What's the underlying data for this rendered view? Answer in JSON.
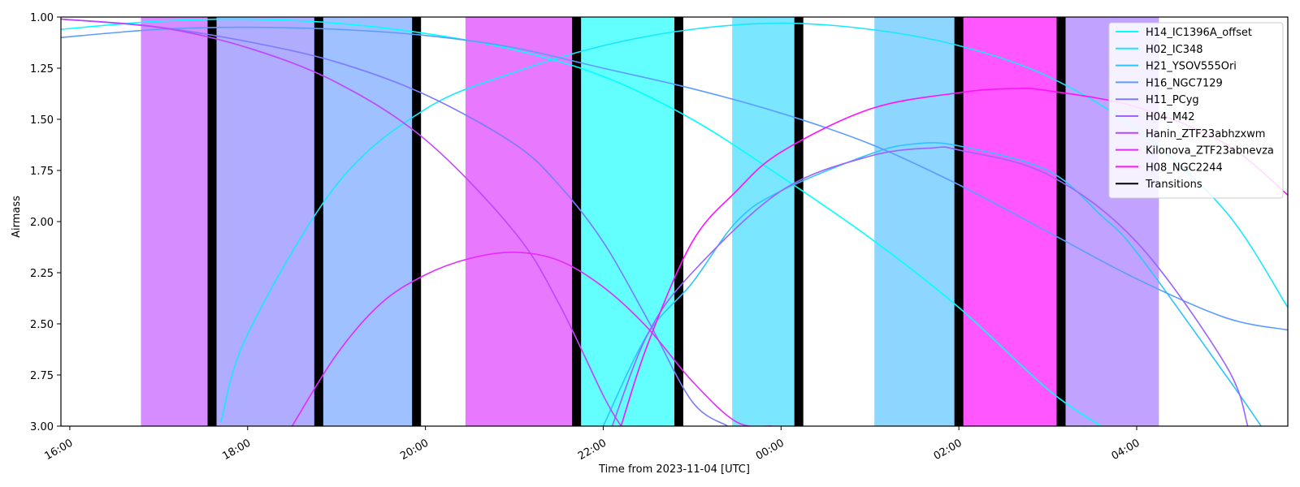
{
  "chart_data": {
    "type": "line",
    "xlabel": "Time from 2023-11-04 [UTC]",
    "ylabel": "Airmass",
    "x_unit": "hours (time of day, values past 24 are next day)",
    "xlim": [
      15.9,
      29.7
    ],
    "ylim": [
      3.0,
      1.0
    ],
    "y_inverted": true,
    "x_ticks": [
      {
        "value": 16,
        "label": "16:00"
      },
      {
        "value": 18,
        "label": "18:00"
      },
      {
        "value": 20,
        "label": "20:00"
      },
      {
        "value": 22,
        "label": "22:00"
      },
      {
        "value": 24,
        "label": "00:00"
      },
      {
        "value": 26,
        "label": "02:00"
      },
      {
        "value": 28,
        "label": "04:00"
      }
    ],
    "y_ticks": [
      {
        "value": 1.0,
        "label": "1.00"
      },
      {
        "value": 1.25,
        "label": "1.25"
      },
      {
        "value": 1.5,
        "label": "1.50"
      },
      {
        "value": 1.75,
        "label": "1.75"
      },
      {
        "value": 2.0,
        "label": "2.00"
      },
      {
        "value": 2.25,
        "label": "2.25"
      },
      {
        "value": 2.5,
        "label": "2.50"
      },
      {
        "value": 2.75,
        "label": "2.75"
      },
      {
        "value": 3.0,
        "label": "3.00"
      }
    ],
    "legend_position": "top-right",
    "series": [
      {
        "name": "H14_IC1396A_offset",
        "color": "#00ffff",
        "x": [
          15.9,
          17.0,
          18.0,
          19.0,
          20.0,
          21.0,
          22.0,
          23.0,
          24.0,
          25.0,
          26.0,
          27.0,
          27.6
        ],
        "y": [
          1.06,
          1.02,
          1.01,
          1.03,
          1.08,
          1.16,
          1.29,
          1.5,
          1.78,
          2.08,
          2.42,
          2.82,
          3.0
        ]
      },
      {
        "name": "H02_IC348",
        "color": "#17e8ff",
        "x": [
          17.7,
          18.0,
          19.0,
          20.0,
          21.0,
          22.0,
          23.0,
          24.0,
          25.0,
          26.0,
          27.0,
          28.0,
          29.0,
          29.7
        ],
        "y": [
          2.98,
          2.55,
          1.82,
          1.45,
          1.27,
          1.14,
          1.06,
          1.03,
          1.06,
          1.14,
          1.29,
          1.55,
          1.95,
          2.42
        ]
      },
      {
        "name": "H21_YSOV555Ori",
        "color": "#2ec4ff",
        "x": [
          22.0,
          22.5,
          23.0,
          23.5,
          24.0,
          25.0,
          25.5,
          26.0,
          27.0,
          27.6,
          28.0,
          29.0,
          29.4
        ],
        "y": [
          3.0,
          2.55,
          2.3,
          2.0,
          1.85,
          1.67,
          1.62,
          1.63,
          1.75,
          1.97,
          2.15,
          2.75,
          3.0
        ]
      },
      {
        "name": "H16_NGC7129",
        "color": "#5c9cff",
        "x": [
          15.9,
          17.0,
          18.0,
          19.0,
          20.0,
          21.0,
          22.0,
          23.0,
          24.0,
          25.0,
          26.0,
          27.0,
          28.0,
          29.0,
          29.7
        ],
        "y": [
          1.1,
          1.06,
          1.05,
          1.06,
          1.09,
          1.15,
          1.25,
          1.35,
          1.47,
          1.62,
          1.82,
          2.05,
          2.28,
          2.47,
          2.53
        ]
      },
      {
        "name": "H11_PCyg",
        "color": "#7b7bff",
        "x": [
          15.9,
          17.0,
          18.0,
          19.0,
          20.0,
          21.0,
          21.5,
          22.0,
          22.5,
          23.0,
          23.4
        ],
        "y": [
          1.01,
          1.05,
          1.12,
          1.22,
          1.38,
          1.62,
          1.82,
          2.1,
          2.48,
          2.88,
          3.0
        ]
      },
      {
        "name": "H04_M42",
        "color": "#9b63ff",
        "x": [
          22.1,
          22.5,
          23.0,
          24.0,
          25.0,
          25.7,
          26.0,
          27.0,
          28.0,
          29.0,
          29.25
        ],
        "y": [
          3.0,
          2.55,
          2.25,
          1.85,
          1.68,
          1.64,
          1.65,
          1.77,
          2.1,
          2.7,
          3.0
        ]
      },
      {
        "name": "Hanin_ZTF23abhzxwm",
        "color": "#c044ff",
        "x": [
          15.9,
          17.0,
          18.0,
          19.0,
          20.0,
          21.0,
          21.5,
          22.0,
          22.2
        ],
        "y": [
          1.01,
          1.05,
          1.15,
          1.32,
          1.6,
          2.05,
          2.4,
          2.85,
          3.0
        ]
      },
      {
        "name": "Kilonova_ZTF23abnevza",
        "color": "#e22bff",
        "x": [
          18.5,
          19.0,
          19.5,
          20.0,
          20.5,
          21.0,
          21.5,
          22.0,
          22.5,
          23.0,
          23.5,
          23.9
        ],
        "y": [
          3.0,
          2.65,
          2.4,
          2.26,
          2.18,
          2.15,
          2.19,
          2.32,
          2.52,
          2.78,
          2.98,
          3.0
        ]
      },
      {
        "name": "H08_NGC2244",
        "color": "#ff10ff",
        "x": [
          22.2,
          22.5,
          23.0,
          23.5,
          24.0,
          25.0,
          26.0,
          26.6,
          27.0,
          28.0,
          29.0,
          29.7
        ],
        "y": [
          3.0,
          2.6,
          2.1,
          1.85,
          1.66,
          1.45,
          1.37,
          1.35,
          1.36,
          1.44,
          1.62,
          1.87
        ]
      }
    ],
    "transitions_label": "Transitions",
    "transitions_color": "#000000",
    "transitions_at": [
      17.6,
      18.8,
      19.9,
      21.7,
      22.85,
      24.2,
      26.0,
      27.15
    ],
    "shaded_bands": [
      {
        "start": 16.8,
        "end": 17.6,
        "color": "#d68bff"
      },
      {
        "start": 17.6,
        "end": 18.8,
        "color": "#b0adff"
      },
      {
        "start": 18.8,
        "end": 19.9,
        "color": "#a0c1ff"
      },
      {
        "start": 20.45,
        "end": 21.7,
        "color": "#e879ff"
      },
      {
        "start": 21.7,
        "end": 22.85,
        "color": "#63ffff"
      },
      {
        "start": 23.45,
        "end": 24.2,
        "color": "#7be6ff"
      },
      {
        "start": 25.05,
        "end": 26.0,
        "color": "#8dd6ff"
      },
      {
        "start": 26.0,
        "end": 27.15,
        "color": "#ff56ff"
      },
      {
        "start": 27.15,
        "end": 28.25,
        "color": "#c1a2ff"
      }
    ]
  }
}
